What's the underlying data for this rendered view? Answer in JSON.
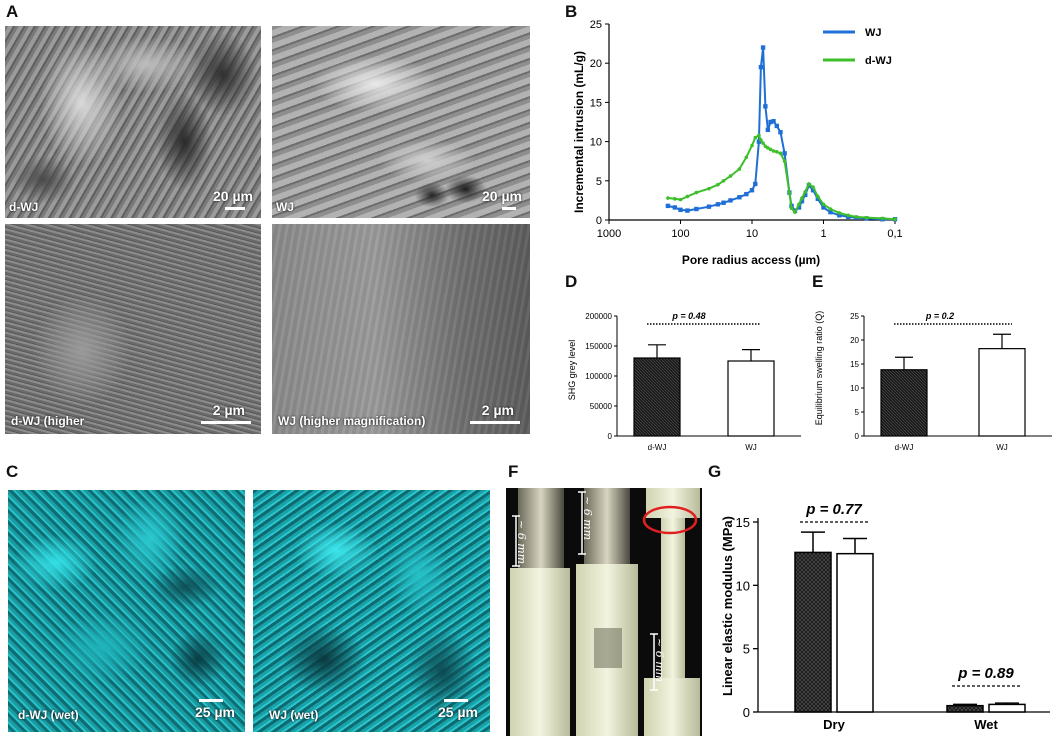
{
  "panels": {
    "A": {
      "label": "A",
      "images": [
        {
          "label": "d-WJ",
          "scale": "20 µm"
        },
        {
          "label": "WJ",
          "scale": "20 µm"
        },
        {
          "label": "d-WJ (higher",
          "scale": "2 µm"
        },
        {
          "label": "WJ (higher magnification)",
          "scale": "2 µm"
        }
      ]
    },
    "B": {
      "label": "B"
    },
    "C": {
      "label": "C",
      "images": [
        {
          "label": "d-WJ (wet)",
          "scale": "25 µm"
        },
        {
          "label": "WJ (wet)",
          "scale": "25 µm"
        }
      ]
    },
    "D": {
      "label": "D"
    },
    "E": {
      "label": "E"
    },
    "F": {
      "label": "F",
      "dims": [
        "~ 6 mm",
        "~ 6 mm",
        "~ 6 mm"
      ]
    },
    "G": {
      "label": "G"
    }
  },
  "chart_data": [
    {
      "panel": "B",
      "type": "line",
      "xlabel": "Pore radius access (µm)",
      "ylabel": "Incremental intrusion (mL/g)",
      "xscale": "log-reversed",
      "xlim": [
        1000,
        0.1
      ],
      "ylim": [
        0,
        25
      ],
      "xticks": [
        {
          "v": 1000,
          "label": "1000"
        },
        {
          "v": 100,
          "label": "100"
        },
        {
          "v": 10,
          "label": "10"
        },
        {
          "v": 1,
          "label": "1"
        },
        {
          "v": 0.1,
          "label": "0,1"
        }
      ],
      "yticks": [
        0,
        5,
        10,
        15,
        20,
        25
      ],
      "legend": "top-right",
      "series": [
        {
          "name": "WJ",
          "color": "#1f6fd6",
          "x": [
            150,
            120,
            100,
            80,
            60,
            40,
            30,
            25,
            20,
            15,
            12,
            10,
            9,
            8,
            7.5,
            7,
            6.5,
            6,
            5.5,
            5,
            4.5,
            4,
            3.5,
            3,
            2.8,
            2.5,
            2.2,
            2,
            1.8,
            1.6,
            1.4,
            1.2,
            1,
            0.8,
            0.6,
            0.45,
            0.35,
            0.25,
            0.15,
            0.1
          ],
          "y": [
            1.8,
            1.6,
            1.3,
            1.2,
            1.4,
            1.7,
            2.0,
            2.2,
            2.5,
            2.9,
            3.3,
            3.8,
            4.6,
            10,
            19.5,
            22,
            14.5,
            11.5,
            12.5,
            12.6,
            12.0,
            11.2,
            8.5,
            3.5,
            1.8,
            1.2,
            1.6,
            2.4,
            3.2,
            4.4,
            3.8,
            2.7,
            1.6,
            1.0,
            0.6,
            0.4,
            0.3,
            0.2,
            0.1,
            0.1
          ]
        },
        {
          "name": "d-WJ",
          "color": "#3dbf2a",
          "x": [
            150,
            120,
            100,
            80,
            60,
            40,
            30,
            25,
            20,
            15,
            12,
            10,
            9,
            8,
            7.5,
            7,
            6.5,
            6,
            5.5,
            5,
            4.5,
            4,
            3.5,
            3,
            2.8,
            2.5,
            2.2,
            2,
            1.8,
            1.6,
            1.4,
            1.2,
            1,
            0.8,
            0.6,
            0.45,
            0.35,
            0.25,
            0.15,
            0.1
          ],
          "y": [
            2.8,
            2.7,
            2.6,
            3.0,
            3.5,
            4.0,
            4.5,
            5.0,
            5.6,
            6.5,
            8.0,
            9.5,
            10.5,
            10.8,
            10.2,
            9.8,
            9.4,
            9.2,
            9.0,
            8.8,
            8.7,
            8.5,
            7.5,
            3.5,
            1.5,
            1.0,
            2.0,
            2.8,
            3.6,
            4.6,
            4.2,
            3.0,
            2.0,
            1.4,
            0.9,
            0.6,
            0.4,
            0.3,
            0.2,
            0.1
          ]
        }
      ]
    },
    {
      "panel": "D",
      "type": "bar",
      "categories": [
        "d-WJ",
        "WJ"
      ],
      "values": [
        130000,
        125000
      ],
      "errors": [
        22000,
        19000
      ],
      "ylabel": "SHG grey level",
      "ylim": [
        0,
        200000
      ],
      "yticks": [
        0,
        50000,
        100000,
        150000,
        200000
      ],
      "annotation": "p = 0.48"
    },
    {
      "panel": "E",
      "type": "bar",
      "categories": [
        "d-WJ",
        "WJ"
      ],
      "values": [
        13.8,
        18.2
      ],
      "errors": [
        2.6,
        3.0
      ],
      "ylabel": "Equilibrium swelling ratio (Q)",
      "ylim": [
        0,
        25
      ],
      "yticks": [
        0,
        5,
        10,
        15,
        20,
        25
      ],
      "annotation": "p = 0.2"
    },
    {
      "panel": "G",
      "type": "bar",
      "categories": [
        "Dry",
        "Wet"
      ],
      "series": [
        {
          "values": [
            12.6,
            0.5
          ],
          "errors": [
            1.6,
            0.1
          ],
          "fill": "hatched"
        },
        {
          "values": [
            12.5,
            0.6
          ],
          "errors": [
            1.2,
            0.1
          ],
          "fill": "white"
        }
      ],
      "ylabel": "Linear elastic modulus (MPa)",
      "ylim": [
        0,
        15
      ],
      "yticks": [
        0,
        5,
        10,
        15
      ],
      "annotations": [
        "p = 0.77",
        "p = 0.89"
      ]
    }
  ]
}
